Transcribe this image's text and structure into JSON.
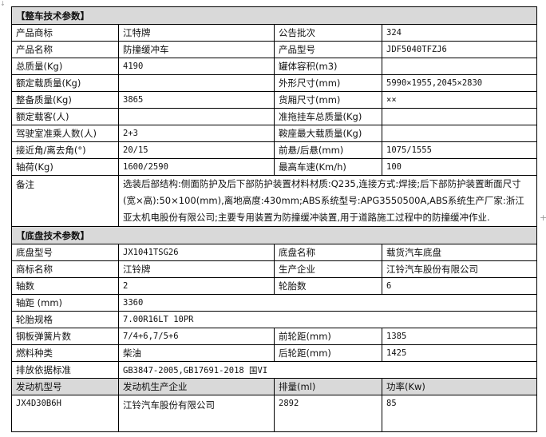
{
  "vehicle": {
    "header": "【整车技术参数】",
    "rows": [
      [
        "产品商标",
        "江特牌",
        "公告批次",
        "324"
      ],
      [
        "产品名称",
        "防撞缓冲车",
        "产品型号",
        "JDF5040TFZJ6"
      ],
      [
        "总质量(Kg)",
        "4190",
        "罐体容积(m3)",
        ""
      ],
      [
        "额定载质量(Kg)",
        "",
        "外形尺寸(mm)",
        "5990×1955,2045×2830"
      ],
      [
        "整备质量(Kg)",
        "3865",
        "货厢尺寸(mm)",
        "××"
      ],
      [
        "额定载客(人)",
        "",
        "准拖挂车总质量(Kg)",
        ""
      ],
      [
        "驾驶室准乘人数(人)",
        "2+3",
        "鞍座最大载质量(Kg)",
        ""
      ],
      [
        "接近角/离去角(°)",
        "20/15",
        "前悬/后悬(mm)",
        "1075/1555"
      ],
      [
        "轴荷(Kg)",
        "1600/2590",
        "最高车速(Km/h)",
        "100"
      ]
    ],
    "remark_label": "备注",
    "remark": "选装后部结构:侧面防护及后下部防护装置材料材质:Q235,连接方式:焊接;后下部防护装置断面尺寸(宽×高):50×100(mm),离地高度:430mm;ABS系统型号:APG3550500A,ABS系统生产厂家:浙江亚太机电股份有限公司;主要专用装置为防撞缓冲装置,用于道路施工过程中的防撞缓冲作业."
  },
  "chassis": {
    "header": "【底盘技术参数】",
    "rows4": [
      [
        "底盘型号",
        "JX1041TSG26",
        "底盘名称",
        "载货汽车底盘"
      ],
      [
        "商标名称",
        "江铃牌",
        "生产企业",
        "江铃汽车股份有限公司"
      ],
      [
        "轴数",
        "2",
        "轮胎数",
        "6"
      ]
    ],
    "wheelbase": [
      "轴距 (mm)",
      "3360"
    ],
    "tire": [
      "轮胎规格",
      "7.00R16LT 10PR"
    ],
    "rows4b": [
      [
        "钢板弹簧片数",
        "7/4+6,7/5+6",
        "前轮距(mm)",
        "1385"
      ],
      [
        "燃料种类",
        "柴油",
        "后轮距(mm)",
        "1425"
      ]
    ],
    "emission": [
      "排放依据标准",
      "GB3847-2005,GB17691-2018 国VI"
    ],
    "engine_header": [
      "发动机型号",
      "发动机生产企业",
      "排量(ml)",
      "功率(Kw)"
    ],
    "engine": [
      "JX4D30B6H",
      "江铃汽车股份有限公司",
      "2892",
      "85"
    ]
  }
}
